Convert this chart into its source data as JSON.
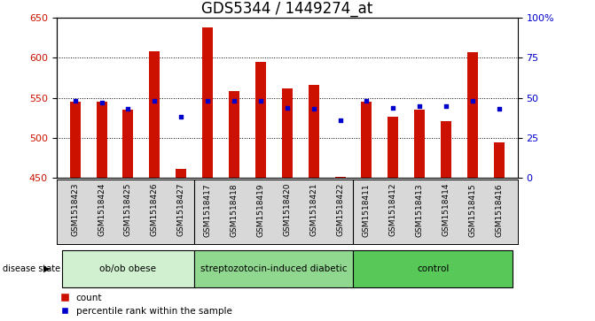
{
  "title": "GDS5344 / 1449274_at",
  "samples": [
    "GSM1518423",
    "GSM1518424",
    "GSM1518425",
    "GSM1518426",
    "GSM1518427",
    "GSM1518417",
    "GSM1518418",
    "GSM1518419",
    "GSM1518420",
    "GSM1518421",
    "GSM1518422",
    "GSM1518411",
    "GSM1518412",
    "GSM1518413",
    "GSM1518414",
    "GSM1518415",
    "GSM1518416"
  ],
  "counts": [
    545,
    545,
    535,
    608,
    462,
    638,
    558,
    595,
    562,
    566,
    452,
    545,
    526,
    535,
    521,
    607,
    495
  ],
  "percentiles": [
    48,
    47,
    43,
    48,
    38,
    48,
    48,
    48,
    44,
    43,
    36,
    48,
    44,
    45,
    45,
    48,
    43
  ],
  "groups": [
    {
      "label": "ob/ob obese",
      "start": 0,
      "end": 5,
      "color": "#d0f0d0"
    },
    {
      "label": "streptozotocin-induced diabetic",
      "start": 5,
      "end": 11,
      "color": "#90d890"
    },
    {
      "label": "control",
      "start": 11,
      "end": 17,
      "color": "#58c858"
    }
  ],
  "ylim_left": [
    450,
    650
  ],
  "ylim_right": [
    0,
    100
  ],
  "bar_color": "#cc1100",
  "dot_color": "#0000cc",
  "bar_bottom": 450,
  "title_fontsize": 12,
  "label_color_left": "#cc1100",
  "label_color_right": "#0000cc",
  "ylabel_left_ticks": [
    450,
    500,
    550,
    600,
    650
  ],
  "ylabel_right_ticks": [
    0,
    25,
    50,
    75,
    100
  ],
  "ylabel_right_labels": [
    "0",
    "25",
    "50",
    "75",
    "100%"
  ],
  "plot_bg_color": "#ffffff",
  "sample_bg_color": "#d8d8d8",
  "disease_state_label": "disease state",
  "legend_count_label": "count",
  "legend_percentile_label": "percentile rank within the sample"
}
